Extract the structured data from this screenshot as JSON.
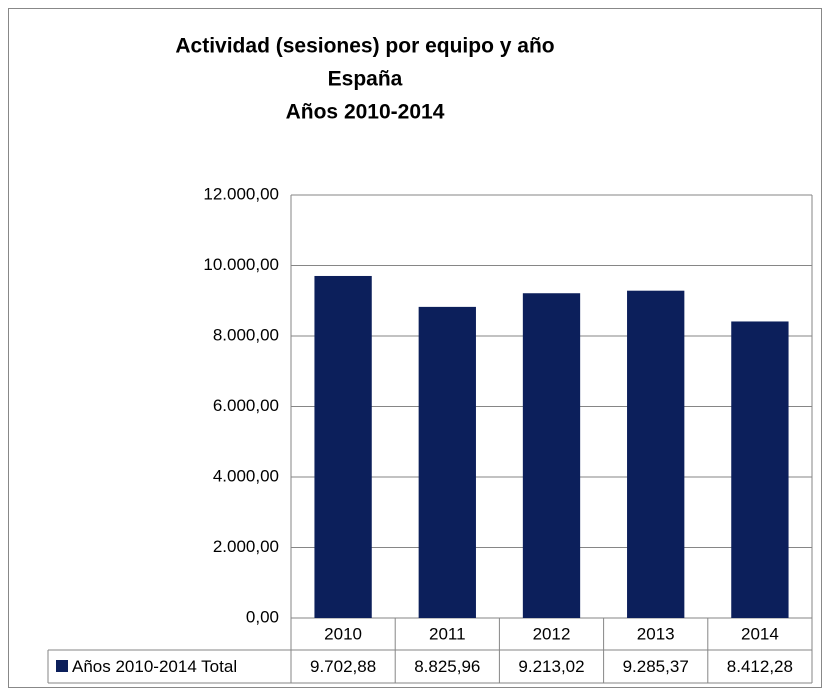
{
  "chart_data": {
    "type": "bar",
    "title": "Actividad (sesiones) por equipo y año",
    "subtitle": [
      "España",
      "Años 2010-2014"
    ],
    "categories": [
      "2010",
      "2011",
      "2012",
      "2013",
      "2014"
    ],
    "series": [
      {
        "name": "Años 2010-2014 Total",
        "color": "#0c1f5b",
        "values": [
          9702.88,
          8825.96,
          9213.02,
          9285.37,
          8412.28
        ],
        "value_labels": [
          "9.702,88",
          "8.825,96",
          "9.213,02",
          "9.285,37",
          "8.412,28"
        ]
      }
    ],
    "ylim": [
      0,
      12000
    ],
    "yticks": [
      {
        "value": 0,
        "label": "0,00"
      },
      {
        "value": 2000,
        "label": "2.000,00"
      },
      {
        "value": 4000,
        "label": "4.000,00"
      },
      {
        "value": 6000,
        "label": "6.000,00"
      },
      {
        "value": 8000,
        "label": "8.000,00"
      },
      {
        "value": 10000,
        "label": "10.000,00"
      },
      {
        "value": 12000,
        "label": "12.000,00"
      }
    ],
    "grid": true
  }
}
